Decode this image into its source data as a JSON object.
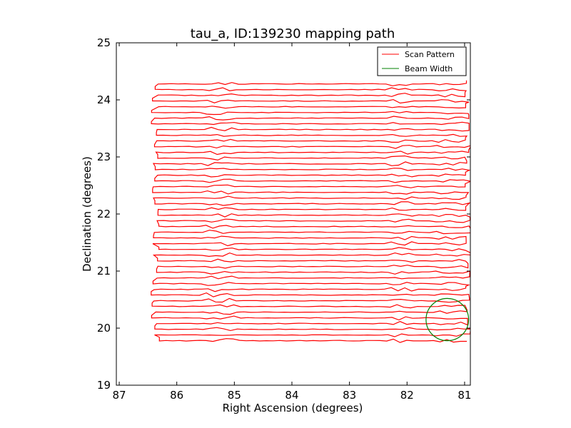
{
  "chart_data": {
    "type": "line",
    "title": "tau_a, ID:139230 mapping path",
    "xlabel": "Right Ascension (degrees)",
    "ylabel": "Declination (degrees)",
    "xlim": [
      87.05,
      80.9
    ],
    "ylim": [
      19,
      25
    ],
    "x_inverted": true,
    "xticks": [
      87,
      86,
      85,
      84,
      83,
      82,
      81
    ],
    "yticks": [
      19,
      20,
      21,
      22,
      23,
      24,
      25
    ],
    "grid": false,
    "legend_position": "top-right",
    "legend": [
      "Scan Pattern",
      "Beam Width"
    ],
    "series": [
      {
        "name": "Scan Pattern",
        "color": "#ff0000",
        "style": "raster",
        "ra_range": [
          81.0,
          86.3
        ],
        "dec_range": [
          19.78,
          24.28
        ],
        "row_step_dec": 0.1,
        "row_count": 46,
        "turnaround_jitter": [
          "ra 85.0-85.5",
          "ra 81.9-82.3"
        ]
      },
      {
        "name": "Beam Width",
        "color": "#008000",
        "style": "circle",
        "center_ra": 81.3,
        "center_dec": 20.15,
        "radius_deg": 0.37
      }
    ]
  }
}
